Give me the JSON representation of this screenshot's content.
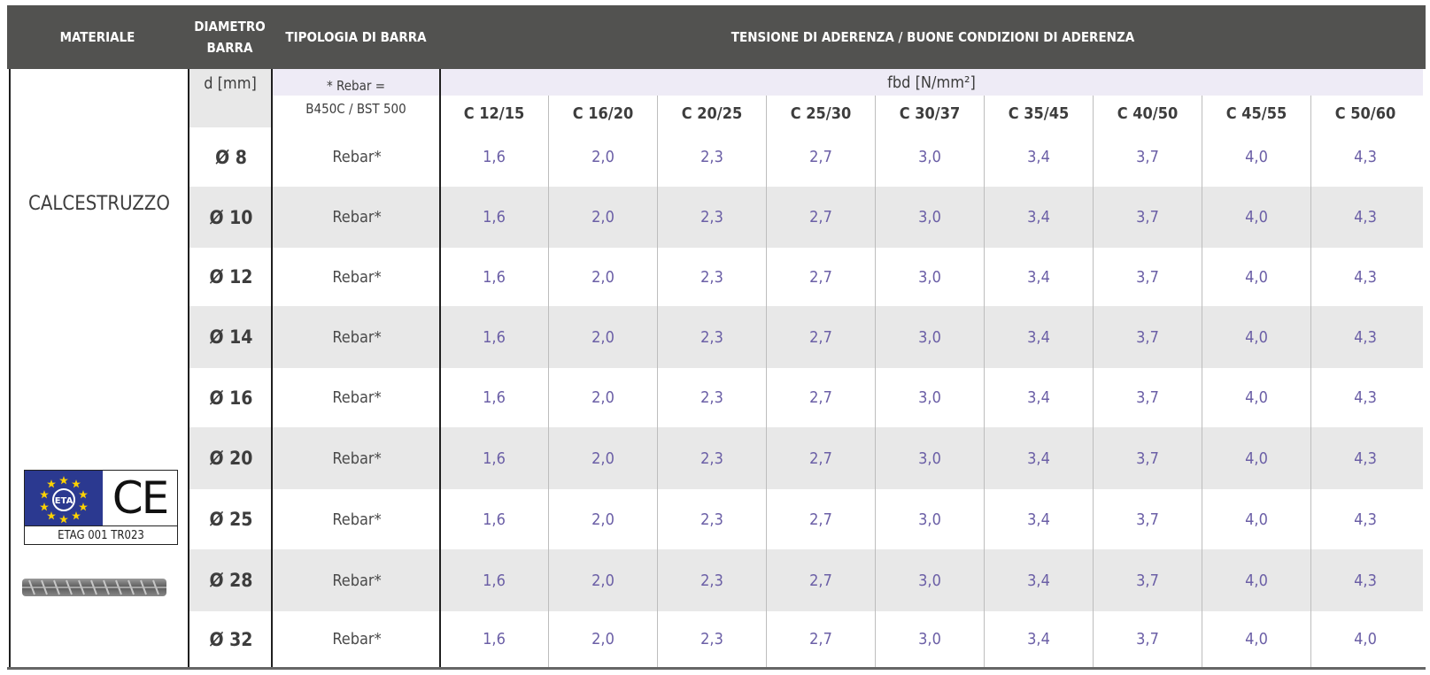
{
  "header": {
    "materiale": "MATERIALE",
    "diametro_line1": "DIAMETRO",
    "diametro_line2": "BARRA",
    "tipologia": "TIPOLOGIA DI BARRA",
    "tensione": "TENSIONE DI ADERENZA / BUONE CONDIZIONI DI ADERENZA"
  },
  "subheader": {
    "d_unit": "d [mm]",
    "rebar_note_line1": "* Rebar =",
    "rebar_note_line2": "B450C / BST 500",
    "fbd_unit": "fbd [N/mm²]"
  },
  "material": {
    "name": "CALCESTRUZZO",
    "eta_logo_text": "ETA",
    "ce_mark": "CE",
    "etag_label": "ETAG 001 TR023"
  },
  "concrete_classes": [
    "C 12/15",
    "C 16/20",
    "C 20/25",
    "C 25/30",
    "C 30/37",
    "C 35/45",
    "C 40/50",
    "C 45/55",
    "C 50/60"
  ],
  "rows": [
    {
      "diameter": "Ø 8",
      "type": "Rebar*",
      "values": [
        "1,6",
        "2,0",
        "2,3",
        "2,7",
        "3,0",
        "3,4",
        "3,7",
        "4,0",
        "4,3"
      ]
    },
    {
      "diameter": "Ø 10",
      "type": "Rebar*",
      "values": [
        "1,6",
        "2,0",
        "2,3",
        "2,7",
        "3,0",
        "3,4",
        "3,7",
        "4,0",
        "4,3"
      ]
    },
    {
      "diameter": "Ø 12",
      "type": "Rebar*",
      "values": [
        "1,6",
        "2,0",
        "2,3",
        "2,7",
        "3,0",
        "3,4",
        "3,7",
        "4,0",
        "4,3"
      ]
    },
    {
      "diameter": "Ø 14",
      "type": "Rebar*",
      "values": [
        "1,6",
        "2,0",
        "2,3",
        "2,7",
        "3,0",
        "3,4",
        "3,7",
        "4,0",
        "4,3"
      ]
    },
    {
      "diameter": "Ø 16",
      "type": "Rebar*",
      "values": [
        "1,6",
        "2,0",
        "2,3",
        "2,7",
        "3,0",
        "3,4",
        "3,7",
        "4,0",
        "4,3"
      ]
    },
    {
      "diameter": "Ø 20",
      "type": "Rebar*",
      "values": [
        "1,6",
        "2,0",
        "2,3",
        "2,7",
        "3,0",
        "3,4",
        "3,7",
        "4,0",
        "4,3"
      ]
    },
    {
      "diameter": "Ø 25",
      "type": "Rebar*",
      "values": [
        "1,6",
        "2,0",
        "2,3",
        "2,7",
        "3,0",
        "3,4",
        "3,7",
        "4,0",
        "4,3"
      ]
    },
    {
      "diameter": "Ø 28",
      "type": "Rebar*",
      "values": [
        "1,6",
        "2,0",
        "2,3",
        "2,7",
        "3,0",
        "3,4",
        "3,7",
        "4,0",
        "4,3"
      ]
    },
    {
      "diameter": "Ø 32",
      "type": "Rebar*",
      "values": [
        "1,6",
        "2,0",
        "2,3",
        "2,7",
        "3,0",
        "3,4",
        "3,7",
        "4,0",
        "4,0"
      ]
    }
  ],
  "colors": {
    "header_bg": "#525250",
    "value_text": "#6b5fa6",
    "stripe": "#e8e8e8",
    "lilac": "#eeebf6"
  }
}
